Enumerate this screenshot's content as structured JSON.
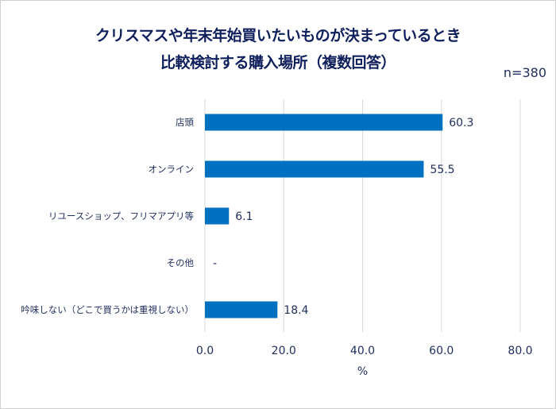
{
  "chart_data": {
    "type": "bar",
    "orientation": "horizontal",
    "title": [
      "クリスマスや年末年始買いたいものが決まっているとき",
      "比較検討する購入場所（複数回答）"
    ],
    "annotation": "n=380",
    "categories": [
      "店頭",
      "オンライン",
      "リユースショップ、フリマアプリ等",
      "その他",
      "吟味しない（どこで買うかは重視しない）"
    ],
    "values": [
      60.3,
      55.5,
      6.1,
      null,
      18.4
    ],
    "data_labels": [
      "60.3",
      "55.5",
      "6.1",
      "-",
      "18.4"
    ],
    "xlabel": "%",
    "xlim": [
      0,
      80
    ],
    "xticks": [
      "0.0",
      "20.0",
      "40.0",
      "60.0",
      "80.0"
    ],
    "grid": true,
    "bar_color": "#0070c0"
  }
}
